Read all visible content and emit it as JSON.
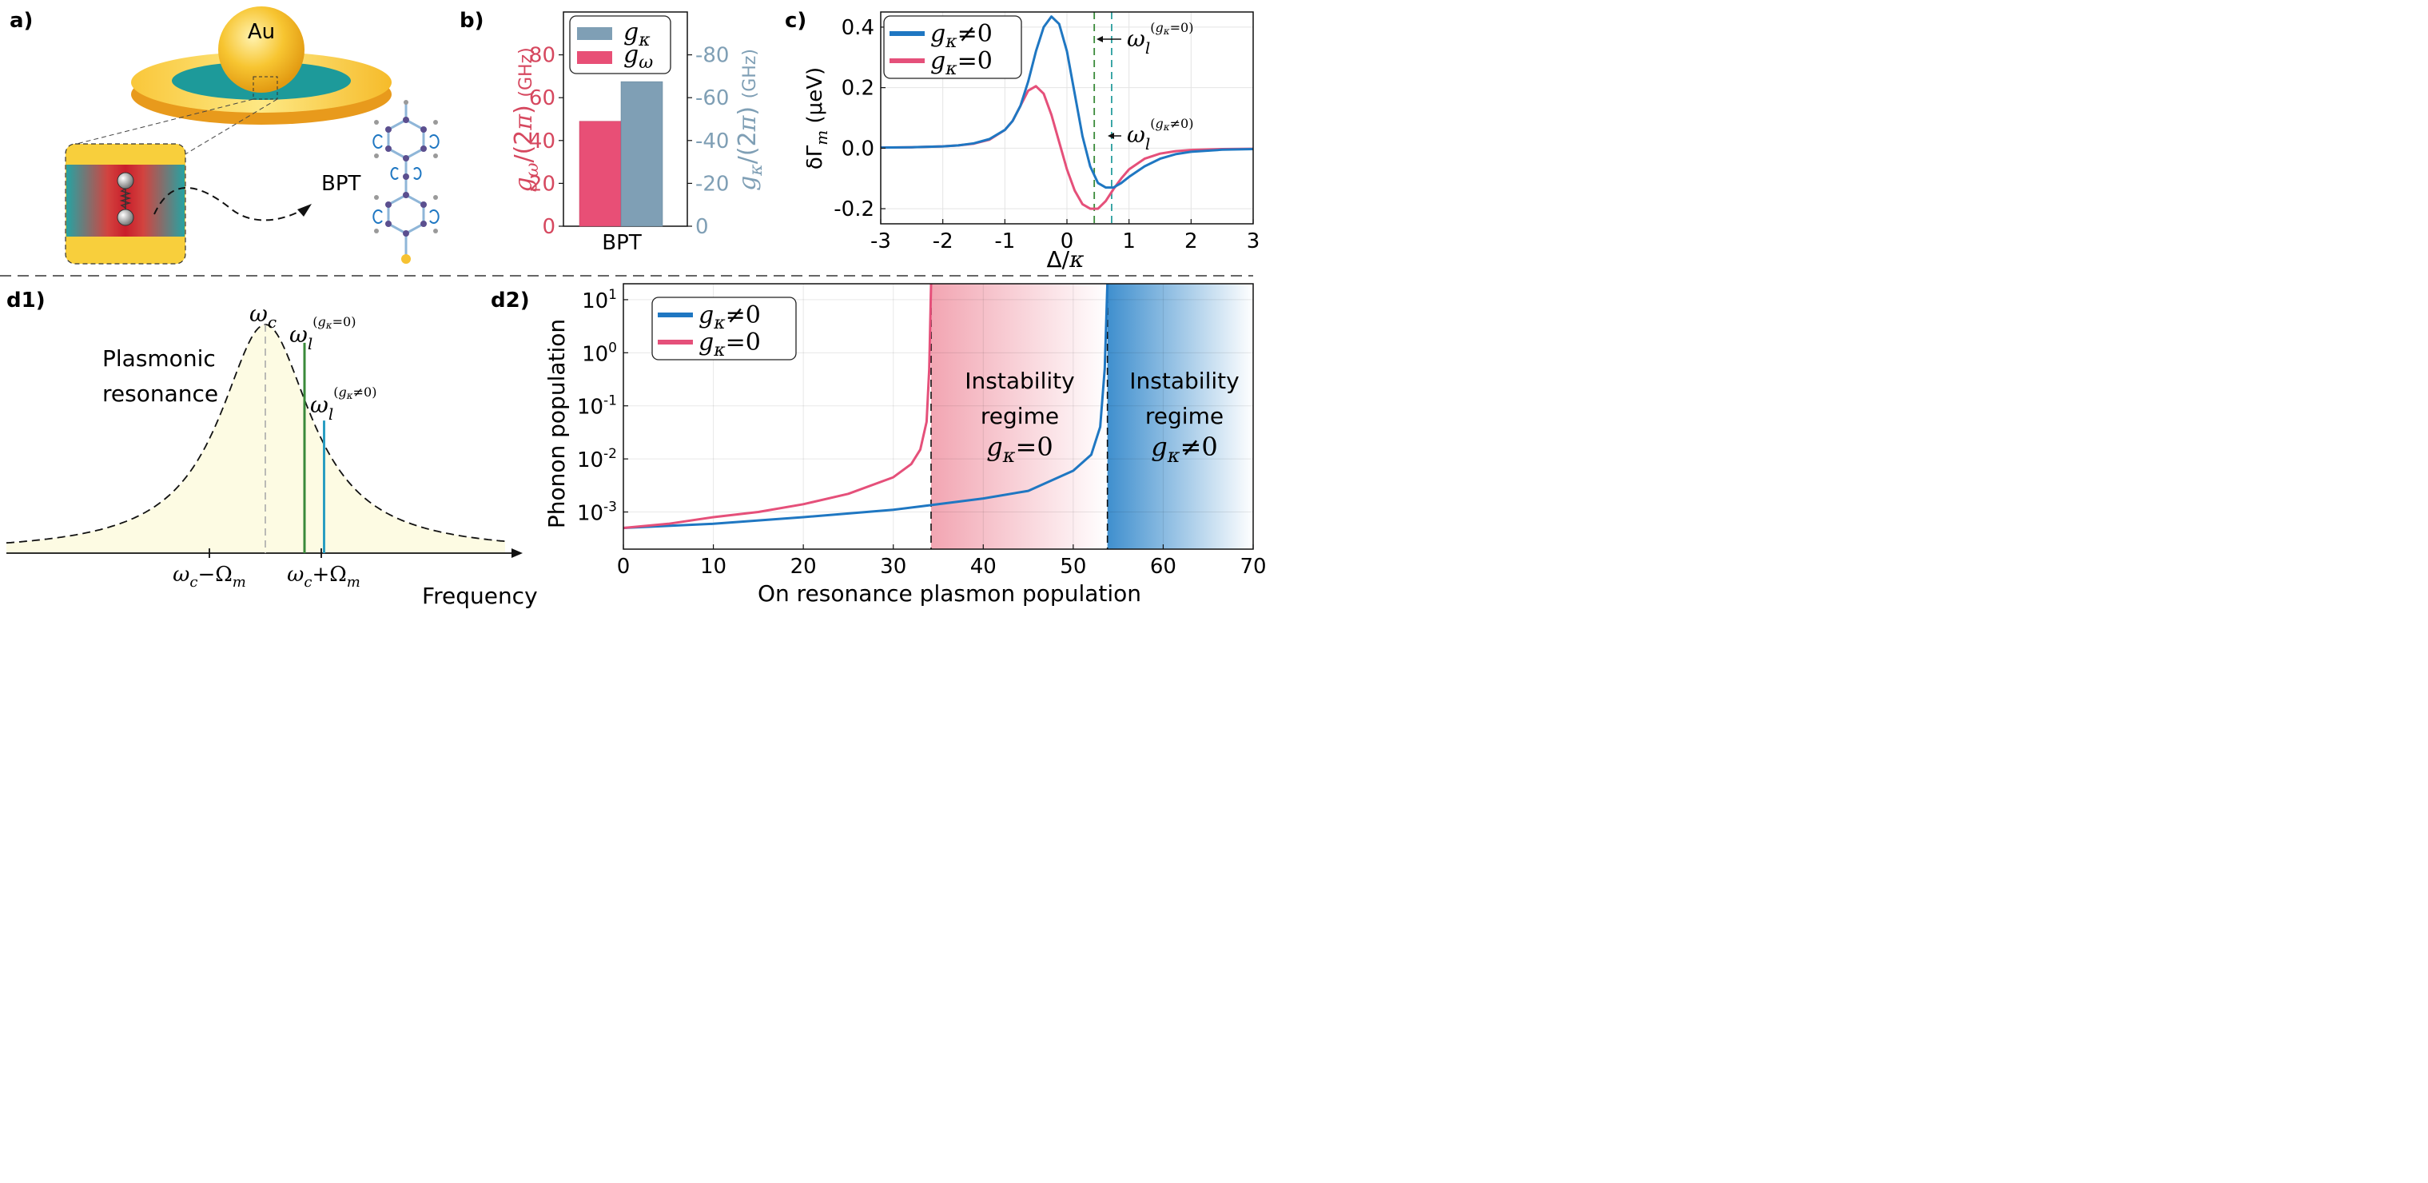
{
  "panel_labels": {
    "a": "a)",
    "b": "b)",
    "c": "c)",
    "d1": "d1)",
    "d2": "d2)"
  },
  "colors": {
    "blue": "#1f77c2",
    "pink": "#e5507a",
    "bar_pink": "#e84f76",
    "bar_slate": "#7f9fb5",
    "gold": "#f5c233",
    "teal": "#1d9a9a",
    "green": "#3a8a3a",
    "cyan": "#2a9ec2",
    "yellow_fill": "#fdfbe3",
    "instab_pink": "#f2a5b2",
    "instab_blue": "#3f8fce"
  },
  "panel_a": {
    "sphere_label": "Au",
    "molecule_label": "BPT"
  },
  "chart_data": [
    {
      "id": "b",
      "type": "bar",
      "categories": [
        "BPT"
      ],
      "series": [
        {
          "name": "gκ",
          "values": [
            -67.5
          ],
          "color": "#7f9fb5"
        },
        {
          "name": "gω",
          "values": [
            49
          ],
          "color": "#e84f76"
        }
      ],
      "ylabel_left": "gω/(2π) (GHz)",
      "ylabel_right": "gκ/(2π) (GHz)",
      "left_ylim": [
        0,
        100
      ],
      "left_ticks": [
        "0",
        "20",
        "40",
        "60",
        "80"
      ],
      "right_ylim": [
        0,
        -100
      ],
      "right_ticks": [
        "0",
        "-20",
        "-40",
        "-60",
        "-80"
      ],
      "legend": "top-left"
    },
    {
      "id": "c",
      "type": "line",
      "xlabel": "Δ/κ",
      "ylabel": "δΓm (μeV)",
      "xlim": [
        -3,
        3
      ],
      "ylim": [
        -0.25,
        0.45
      ],
      "x_ticks": [
        "-3",
        "-2",
        "-1",
        "0",
        "1",
        "2",
        "3"
      ],
      "y_ticks": [
        "0.4",
        "0.2",
        "0.0",
        "-0.2"
      ],
      "grid": true,
      "legend": "top-left",
      "series": [
        {
          "name": "gκ≠0",
          "color": "#1f77c2",
          "x": [
            -3,
            -2.5,
            -2,
            -1.75,
            -1.5,
            -1.25,
            -1,
            -0.875,
            -0.75,
            -0.625,
            -0.5,
            -0.375,
            -0.25,
            -0.125,
            0,
            0.125,
            0.25,
            0.375,
            0.5,
            0.625,
            0.75,
            0.875,
            1,
            1.25,
            1.5,
            1.75,
            2,
            2.5,
            3
          ],
          "y": [
            0.002,
            0.003,
            0.006,
            0.009,
            0.016,
            0.03,
            0.06,
            0.09,
            0.14,
            0.22,
            0.32,
            0.4,
            0.435,
            0.41,
            0.32,
            0.18,
            0.04,
            -0.06,
            -0.115,
            -0.13,
            -0.13,
            -0.115,
            -0.095,
            -0.06,
            -0.035,
            -0.02,
            -0.012,
            -0.005,
            -0.003
          ]
        },
        {
          "name": "gκ=0",
          "color": "#e5507a",
          "x": [
            -3,
            -2.5,
            -2,
            -1.75,
            -1.5,
            -1.25,
            -1,
            -0.875,
            -0.75,
            -0.625,
            -0.5,
            -0.375,
            -0.25,
            -0.125,
            0,
            0.125,
            0.25,
            0.375,
            0.5,
            0.625,
            0.75,
            0.875,
            1,
            1.25,
            1.5,
            1.75,
            2,
            2.5,
            3
          ],
          "y": [
            0.002,
            0.003,
            0.006,
            0.009,
            0.015,
            0.028,
            0.06,
            0.09,
            0.14,
            0.19,
            0.205,
            0.18,
            0.11,
            0.02,
            -0.07,
            -0.14,
            -0.185,
            -0.2,
            -0.2,
            -0.175,
            -0.135,
            -0.1,
            -0.07,
            -0.035,
            -0.018,
            -0.01,
            -0.006,
            -0.003,
            -0.002
          ]
        }
      ],
      "vlines": [
        {
          "x": 0.44,
          "label": "ωl(gκ=0)",
          "color": "#3a8a3a"
        },
        {
          "x": 0.72,
          "label": "ωl(gκ≠0)",
          "color": "#2a9e9e"
        }
      ]
    },
    {
      "id": "d1",
      "type": "line",
      "xlabel": "Frequency",
      "annotations": [
        "Plasmonic",
        "resonance",
        "ωc",
        "ωl(gκ=0)",
        "ωl(gκ≠0)",
        "ωc−Ωm",
        "ωc+Ωm"
      ],
      "series": [
        {
          "name": "Lorentzian",
          "center": 0,
          "gamma": 1
        }
      ],
      "markers": [
        {
          "label": "ωc",
          "x": 0,
          "height": 1.0
        },
        {
          "label": "ωl(gκ=0)",
          "x": 0.7,
          "height": 0.92
        },
        {
          "label": "ωl(gκ≠0)",
          "x": 1.05,
          "height": 0.58
        },
        {
          "label": "ωc−Ωm",
          "x": -1
        },
        {
          "label": "ωc+Ωm",
          "x": 1
        }
      ]
    },
    {
      "id": "d2",
      "type": "line",
      "xlabel": "On resonance plasmon population",
      "ylabel": "Phonon population",
      "xlim": [
        0,
        70
      ],
      "ylim_log10": [
        -3.7,
        1.3
      ],
      "y_scale": "log",
      "x_ticks": [
        "0",
        "10",
        "20",
        "30",
        "40",
        "50",
        "60",
        "70"
      ],
      "y_ticks": [
        {
          "base": "10",
          "exp": "1"
        },
        {
          "base": "10",
          "exp": "0"
        },
        {
          "base": "10",
          "exp": "-1"
        },
        {
          "base": "10",
          "exp": "-2"
        },
        {
          "base": "10",
          "exp": "-3"
        }
      ],
      "grid": true,
      "legend": "top-left",
      "series": [
        {
          "name": "gκ≠0",
          "color": "#1f77c2",
          "threshold": 53.8,
          "x": [
            0,
            10,
            20,
            30,
            35,
            40,
            45,
            50,
            52,
            53,
            53.5,
            53.8
          ],
          "y": [
            0.0005,
            0.0006,
            0.0008,
            0.0011,
            0.0014,
            0.0018,
            0.0025,
            0.006,
            0.012,
            0.04,
            0.5,
            20
          ]
        },
        {
          "name": "gκ=0",
          "color": "#e5507a",
          "threshold": 34.2,
          "x": [
            0,
            5,
            10,
            15,
            20,
            25,
            30,
            32,
            33,
            33.7,
            34.0,
            34.2
          ],
          "y": [
            0.0005,
            0.0006,
            0.0008,
            0.001,
            0.0014,
            0.0022,
            0.0045,
            0.008,
            0.015,
            0.05,
            0.5,
            20
          ]
        }
      ],
      "regions": [
        {
          "x0": 34.2,
          "x1": 53.8,
          "line1": "Instability",
          "line2": "regime",
          "line3": "gκ=0",
          "color": "#f2a5b2"
        },
        {
          "x0": 53.8,
          "x1": 70,
          "line1": "Instability",
          "line2": "regime",
          "line3": "gκ≠0",
          "color": "#3f8fce"
        }
      ]
    }
  ]
}
